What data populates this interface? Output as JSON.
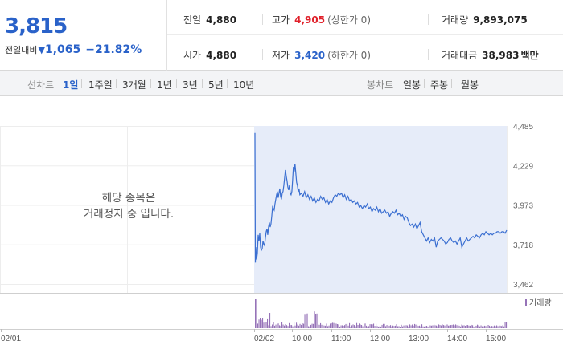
{
  "quote": {
    "current_price": "3,815",
    "change_label": "전일대비",
    "change_arrow": "▼",
    "change_amount": "1,065",
    "change_percent": "−21.82%"
  },
  "stats": {
    "prev_close": {
      "label": "전일",
      "value": "4,880"
    },
    "open": {
      "label": "시가",
      "value": "4,880"
    },
    "high": {
      "label": "고가",
      "value": "4,905",
      "note": "(상한가 0)"
    },
    "low": {
      "label": "저가",
      "value": "3,420",
      "note": "(하한가 0)"
    },
    "volume": {
      "label": "거래량",
      "value": "9,893,075"
    },
    "trade_value": {
      "label": "거래대금",
      "value": "38,983",
      "unit": "백만"
    }
  },
  "line_tabs": {
    "label": "선차트",
    "items": [
      "1일",
      "1주일",
      "3개월",
      "1년",
      "3년",
      "5년",
      "10년"
    ],
    "selected": "1일"
  },
  "candle_tabs": {
    "label": "봉차트",
    "items": [
      "일봉",
      "주봉",
      "월봉"
    ]
  },
  "notice": {
    "line1": "해당 종목은",
    "line2": "거래정지 중 입니다."
  },
  "colors": {
    "down": "#2a62c9",
    "up": "#e0202a",
    "line": "#3b6fd1",
    "fill": "#e6ecf9",
    "volume": "#9673b8"
  },
  "chart_data": {
    "type": "line",
    "y_ticks": [
      "4,485",
      "4,229",
      "3,973",
      "3,718",
      "3,462"
    ],
    "ylim": [
      3462,
      4485
    ],
    "x_ticks": [
      "02/01",
      "02/02",
      "10:00",
      "11:00",
      "12:00",
      "13:00",
      "14:00",
      "15:00"
    ],
    "volume_legend": "거래량",
    "series": [
      {
        "values": [
          [
            0,
            4440
          ],
          [
            0.5,
            3600
          ],
          [
            1,
            3700
          ],
          [
            2,
            3620
          ],
          [
            3,
            3660
          ],
          [
            4,
            3780
          ],
          [
            5,
            3740
          ],
          [
            6,
            3790
          ],
          [
            7,
            3700
          ],
          [
            8,
            3680
          ],
          [
            9,
            3690
          ],
          [
            10,
            3740
          ],
          [
            11,
            3720
          ],
          [
            12,
            3710
          ],
          [
            13,
            3760
          ],
          [
            14,
            3800
          ],
          [
            15,
            3820
          ],
          [
            16,
            3780
          ],
          [
            17,
            3830
          ],
          [
            18,
            3860
          ],
          [
            19,
            3830
          ],
          [
            20,
            3850
          ],
          [
            21,
            3900
          ],
          [
            22,
            3960
          ],
          [
            23,
            3950
          ],
          [
            24,
            3940
          ],
          [
            25,
            3980
          ],
          [
            26,
            4010
          ],
          [
            27,
            4040
          ],
          [
            28,
            4060
          ],
          [
            29,
            4020
          ],
          [
            30,
            4050
          ],
          [
            31,
            4080
          ],
          [
            32,
            4030
          ],
          [
            33,
            4010
          ],
          [
            34,
            4050
          ],
          [
            35,
            4060
          ],
          [
            36,
            4100
          ],
          [
            37,
            4150
          ],
          [
            38,
            4200
          ],
          [
            39,
            4160
          ],
          [
            40,
            4130
          ],
          [
            41,
            4090
          ],
          [
            42,
            4070
          ],
          [
            43,
            4100
          ],
          [
            44,
            4050
          ],
          [
            45,
            4040
          ],
          [
            46,
            4060
          ],
          [
            47,
            4140
          ],
          [
            48,
            4220
          ],
          [
            49,
            4190
          ],
          [
            50,
            4240
          ],
          [
            51,
            4180
          ],
          [
            52,
            4120
          ],
          [
            53,
            4100
          ],
          [
            54,
            4060
          ],
          [
            55,
            4080
          ],
          [
            56,
            4040
          ],
          [
            58,
            4050
          ],
          [
            60,
            4030
          ],
          [
            62,
            4060
          ],
          [
            64,
            4020
          ],
          [
            66,
            4040
          ],
          [
            68,
            4010
          ],
          [
            70,
            4030
          ],
          [
            72,
            4000
          ],
          [
            74,
            4020
          ],
          [
            76,
            3990
          ],
          [
            78,
            4010
          ],
          [
            80,
            4000
          ],
          [
            82,
            4030
          ],
          [
            84,
            4010
          ],
          [
            86,
            4020
          ],
          [
            88,
            3990
          ],
          [
            90,
            4010
          ],
          [
            92,
            3980
          ],
          [
            94,
            4000
          ],
          [
            96,
            3990
          ],
          [
            98,
            4020
          ],
          [
            100,
            4040
          ],
          [
            102,
            4030
          ],
          [
            104,
            4050
          ],
          [
            106,
            4040
          ],
          [
            108,
            4050
          ],
          [
            110,
            4020
          ],
          [
            112,
            4040
          ],
          [
            114,
            4010
          ],
          [
            116,
            4030
          ],
          [
            118,
            4000
          ],
          [
            120,
            4010
          ],
          [
            122,
            3990
          ],
          [
            124,
            4000
          ],
          [
            126,
            3980
          ],
          [
            128,
            3990
          ],
          [
            130,
            3960
          ],
          [
            132,
            3970
          ],
          [
            134,
            3950
          ],
          [
            136,
            3970
          ],
          [
            138,
            3960
          ],
          [
            140,
            3980
          ],
          [
            142,
            3950
          ],
          [
            144,
            3960
          ],
          [
            146,
            3930
          ],
          [
            148,
            3950
          ],
          [
            150,
            3940
          ],
          [
            152,
            3960
          ],
          [
            154,
            3930
          ],
          [
            156,
            3950
          ],
          [
            158,
            3920
          ],
          [
            160,
            3930
          ],
          [
            162,
            3940
          ],
          [
            164,
            3920
          ],
          [
            166,
            3930
          ],
          [
            168,
            3900
          ],
          [
            170,
            3920
          ],
          [
            172,
            3930
          ],
          [
            174,
            3920
          ],
          [
            176,
            3940
          ],
          [
            178,
            3910
          ],
          [
            180,
            3920
          ],
          [
            182,
            3900
          ],
          [
            184,
            3910
          ],
          [
            186,
            3880
          ],
          [
            188,
            3900
          ],
          [
            190,
            3890
          ],
          [
            192,
            3860
          ],
          [
            194,
            3840
          ],
          [
            196,
            3850
          ],
          [
            198,
            3830
          ],
          [
            200,
            3850
          ],
          [
            202,
            3820
          ],
          [
            204,
            3840
          ],
          [
            206,
            3860
          ],
          [
            208,
            3800
          ],
          [
            210,
            3780
          ],
          [
            212,
            3760
          ],
          [
            214,
            3740
          ],
          [
            216,
            3760
          ],
          [
            218,
            3730
          ],
          [
            220,
            3750
          ],
          [
            222,
            3740
          ],
          [
            224,
            3760
          ],
          [
            226,
            3700
          ],
          [
            228,
            3740
          ],
          [
            230,
            3750
          ],
          [
            232,
            3760
          ],
          [
            234,
            3750
          ],
          [
            236,
            3740
          ],
          [
            238,
            3720
          ],
          [
            240,
            3730
          ],
          [
            242,
            3750
          ],
          [
            244,
            3760
          ],
          [
            246,
            3740
          ],
          [
            248,
            3730
          ],
          [
            250,
            3740
          ],
          [
            252,
            3720
          ],
          [
            254,
            3740
          ],
          [
            256,
            3760
          ],
          [
            258,
            3700
          ],
          [
            260,
            3720
          ],
          [
            262,
            3740
          ],
          [
            264,
            3760
          ],
          [
            266,
            3740
          ],
          [
            268,
            3750
          ],
          [
            270,
            3760
          ],
          [
            272,
            3770
          ],
          [
            274,
            3760
          ],
          [
            276,
            3780
          ],
          [
            278,
            3770
          ],
          [
            280,
            3760
          ],
          [
            282,
            3780
          ],
          [
            284,
            3790
          ],
          [
            286,
            3780
          ],
          [
            288,
            3800
          ],
          [
            290,
            3790
          ],
          [
            292,
            3780
          ],
          [
            294,
            3790
          ],
          [
            296,
            3780
          ],
          [
            298,
            3790
          ],
          [
            300,
            3790
          ],
          [
            302,
            3800
          ],
          [
            304,
            3800
          ],
          [
            306,
            3790
          ],
          [
            308,
            3800
          ],
          [
            310,
            3800
          ],
          [
            312,
            3790
          ],
          [
            314,
            3810
          ]
        ]
      }
    ]
  }
}
